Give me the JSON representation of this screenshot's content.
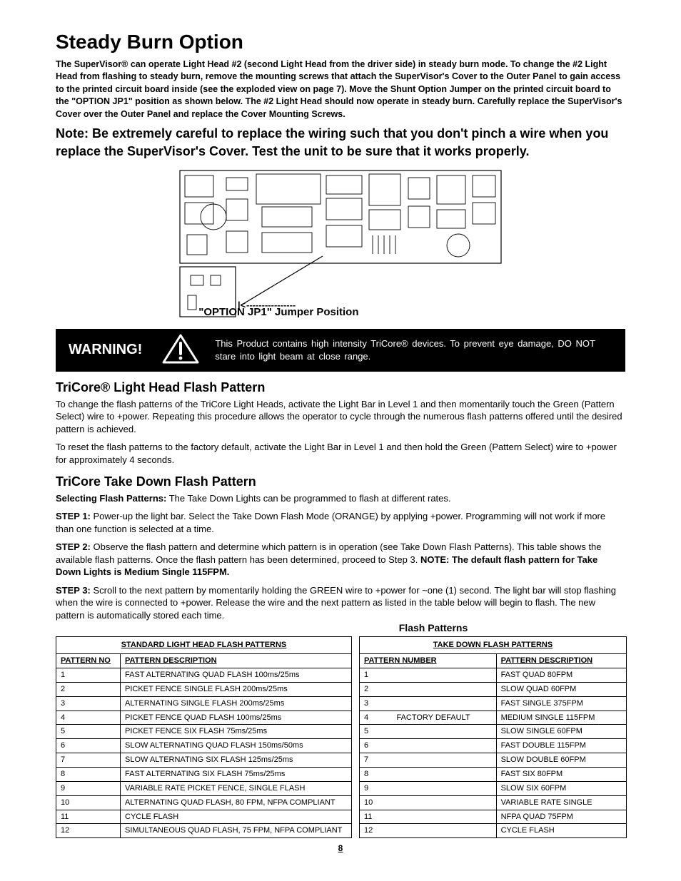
{
  "title": "Steady Burn Option",
  "intro": "The SuperVisor® can operate Light Head #2 (second Light Head from the driver side) in steady burn mode. To change the #2 Light Head from flashing to steady burn, remove the mounting screws that attach the SuperVisor's Cover to the Outer Panel to gain access to the printed circuit board inside (see the exploded view on page 7). Move the Shunt Option Jumper on the printed circuit board to the \"OPTION JP1\" position as shown below. The #2 Light Head should now operate in steady burn. Carefully replace the SuperVisor's Cover over the Outer Panel and replace the Cover Mounting Screws.",
  "note": "Note: Be extremely careful to replace the wiring such that you don't pinch a wire when you replace the SuperVisor's Cover. Test the unit to be sure that it works properly.",
  "jumper_label_dashes": "----------------",
  "jumper_label": "\"OPTION JP1\" Jumper Position",
  "warning": {
    "label": "WARNING!",
    "text": "This Product contains high intensity TriCore® devices. To prevent eye damage, DO NOT stare into light beam at close range."
  },
  "tricore_head": {
    "title": "TriCore® Light Head Flash Pattern",
    "p1": "To change the flash patterns of the TriCore Light Heads, activate the Light Bar in Level 1 and then momentarily touch the Green (Pattern Select) wire to +power.  Repeating this procedure allows the operator to cycle through the numerous flash patterns offered until the desired pattern is achieved.",
    "p2": "To reset the flash patterns to the factory default, activate the Light  Bar in Level 1 and then hold the Green (Pattern Select) wire to +power for approximately 4 seconds."
  },
  "takedown": {
    "title": "TriCore Take Down Flash Pattern",
    "selecting_label": "Selecting Flash Patterns:",
    "selecting_text": " The Take Down Lights can be programmed to flash at different rates.",
    "step1_label": "STEP 1:",
    "step1_text": " Power-up the light bar. Select the Take Down Flash Mode (ORANGE) by applying +power. Programming will not work if more than one function is selected at a time.",
    "step2_label": "STEP 2:",
    "step2_text_a": " Observe the flash pattern and determine which pattern is in operation (see Take Down Flash Patterns).  This table shows the available flash patterns.  Once the flash pattern has been determined, proceed to Step 3. ",
    "step2_note_label": "NOTE:  The default flash pattern for Take Down Lights is Medium Single 115FPM.",
    "step3_label": "STEP 3:",
    "step3_text": " Scroll to the next pattern by momentarily holding the GREEN wire to +power for ~one (1) second.  The light bar will stop flashing when the wire is connected to +power.  Release the wire and the next pattern as listed in the table below will begin to flash.  The new pattern is automatically stored each time."
  },
  "tables": {
    "title": "Flash Patterns",
    "left": {
      "group": "STANDARD LIGHT HEAD FLASH PATTERNS",
      "h1": "PATTERN NO",
      "h2": "PATTERN DESCRIPTION",
      "rows": [
        [
          "1",
          "FAST ALTERNATING QUAD FLASH 100ms/25ms"
        ],
        [
          "2",
          "PICKET FENCE SINGLE FLASH 200ms/25ms"
        ],
        [
          "3",
          "ALTERNATING SINGLE FLASH 200ms/25ms"
        ],
        [
          "4",
          "PICKET FENCE QUAD FLASH 100ms/25ms"
        ],
        [
          "5",
          "PICKET FENCE SIX FLASH 75ms/25ms"
        ],
        [
          "6",
          "SLOW ALTERNATING QUAD FLASH 150ms/50ms"
        ],
        [
          "7",
          "SLOW ALTERNATING SIX FLASH 125ms/25ms"
        ],
        [
          "8",
          "FAST ALTERNATING SIX FLASH 75ms/25ms"
        ],
        [
          "9",
          "VARIABLE RATE PICKET FENCE, SINGLE FLASH"
        ],
        [
          "10",
          "ALTERNATING QUAD FLASH, 80 FPM, NFPA COMPLIANT"
        ],
        [
          "11",
          "CYCLE FLASH"
        ],
        [
          "12",
          "SIMULTANEOUS QUAD FLASH, 75 FPM, NFPA COMPLIANT"
        ]
      ]
    },
    "right": {
      "group": "TAKE DOWN FLASH PATTERNS",
      "h1": "PATTERN NUMBER",
      "h2": "PATTERN DESCRIPTION",
      "rows": [
        [
          "1",
          "",
          "FAST QUAD 80FPM"
        ],
        [
          "2",
          "",
          "SLOW QUAD 60FPM"
        ],
        [
          "3",
          "",
          "FAST SINGLE 375FPM"
        ],
        [
          "4",
          "FACTORY DEFAULT",
          "MEDIUM SINGLE 115FPM"
        ],
        [
          "5",
          "",
          "SLOW SINGLE 60FPM"
        ],
        [
          "6",
          "",
          "FAST DOUBLE 115FPM"
        ],
        [
          "7",
          "",
          "SLOW DOUBLE 60FPM"
        ],
        [
          "8",
          "",
          "FAST SIX 80FPM"
        ],
        [
          "9",
          "",
          "SLOW SIX 60FPM"
        ],
        [
          "10",
          "",
          "VARIABLE RATE SINGLE"
        ],
        [
          "11",
          "",
          "NFPA QUAD 75FPM"
        ],
        [
          "12",
          "",
          "CYCLE FLASH"
        ]
      ]
    }
  },
  "page_number": "8",
  "colors": {
    "text": "#000000",
    "bg": "#ffffff",
    "warning_bg": "#000000",
    "warning_fg": "#ffffff"
  }
}
